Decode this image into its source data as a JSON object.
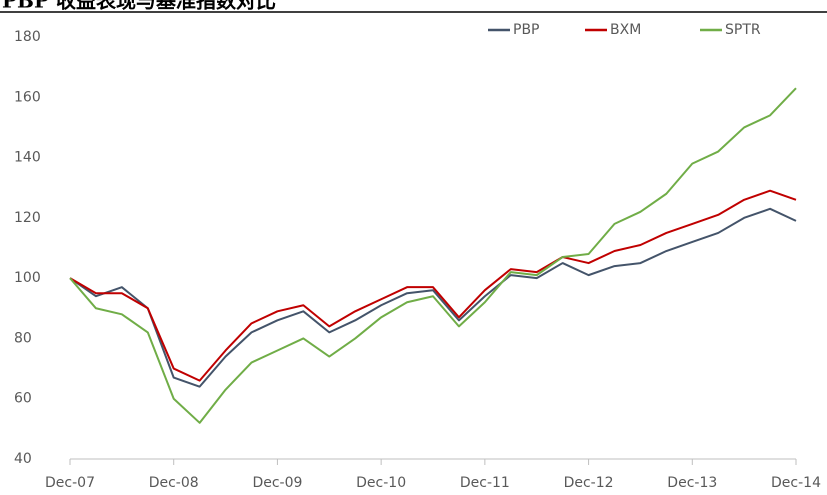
{
  "chart_data": {
    "type": "line",
    "title": "PBP 收益表现与基准指数对比",
    "categories": [
      "Dec-07",
      null,
      null,
      null,
      "Dec-08",
      null,
      null,
      null,
      "Dec-09",
      null,
      null,
      null,
      "Dec-10",
      null,
      null,
      null,
      "Dec-11",
      null,
      null,
      null,
      "Dec-12",
      null,
      null,
      null,
      "Dec-13",
      null,
      null,
      null,
      "Dec-14"
    ],
    "series": [
      {
        "name": "PBP",
        "color": "#44546a",
        "values": [
          100,
          94,
          97,
          90,
          67,
          64,
          74,
          82,
          86,
          89,
          82,
          86,
          91,
          95,
          96,
          86,
          94,
          101,
          100,
          105,
          101,
          104,
          105,
          109,
          112,
          115,
          120,
          123,
          119
        ]
      },
      {
        "name": "BXM",
        "color": "#c00000",
        "values": [
          100,
          95,
          95,
          90,
          70,
          66,
          76,
          85,
          89,
          91,
          84,
          89,
          93,
          97,
          97,
          87,
          96,
          103,
          102,
          107,
          105,
          109,
          111,
          115,
          118,
          121,
          126,
          129,
          126
        ]
      },
      {
        "name": "SPTR",
        "color": "#70ad47",
        "values": [
          100,
          90,
          88,
          82,
          60,
          52,
          63,
          72,
          76,
          80,
          74,
          80,
          87,
          92,
          94,
          84,
          92,
          102,
          101,
          107,
          108,
          118,
          122,
          128,
          138,
          142,
          150,
          154,
          163
        ]
      }
    ],
    "ylim": [
      40,
      180
    ],
    "yticks": [
      40,
      60,
      80,
      100,
      120,
      140,
      160,
      180
    ],
    "legend": "top-right"
  }
}
